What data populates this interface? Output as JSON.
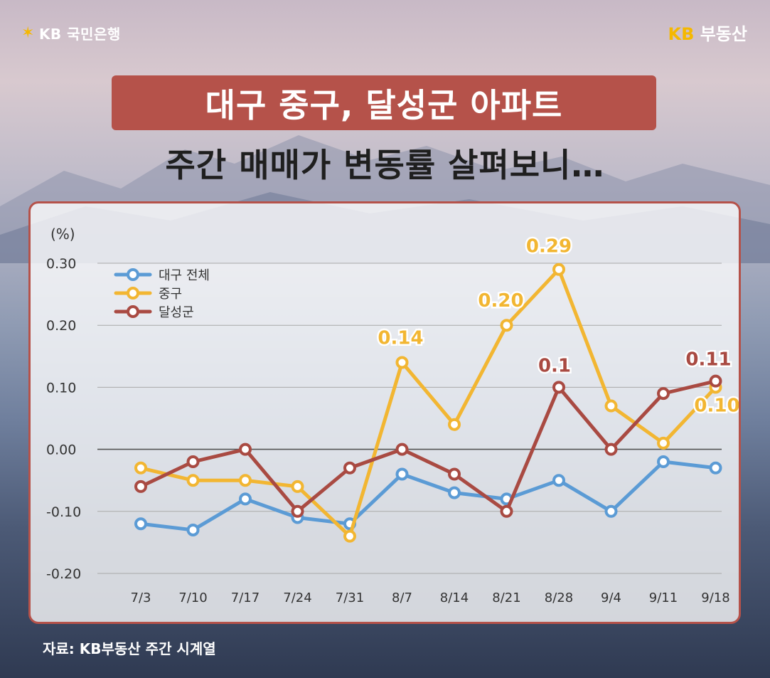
{
  "header": {
    "bank_brand": "KB 국민은행",
    "brand_main": "KB",
    "brand_sub": "부동산",
    "title": "대구 중구, 달성군 아파트",
    "subtitle": "주간 매매가 변동률 살펴보니…"
  },
  "source": "자료: KB부동산 주간 시계열",
  "colors": {
    "accent": "#b5524a",
    "daegu": "#5b9bd5",
    "junggu": "#f2b632",
    "dalseong": "#a94a42",
    "gold": "#f5b800"
  },
  "icons": {
    "bank_logo": "star-icon"
  },
  "chart_data": {
    "type": "line",
    "unit_label": "(%)",
    "categories": [
      "7/3",
      "7/10",
      "7/17",
      "7/24",
      "7/31",
      "8/7",
      "8/14",
      "8/21",
      "8/28",
      "9/4",
      "9/11",
      "9/18"
    ],
    "yticks": [
      "0.30",
      "0.20",
      "0.10",
      "0.00",
      "-0.10",
      "-0.20"
    ],
    "ylim": [
      -0.2,
      0.3
    ],
    "grid": true,
    "legend_position": "top-left",
    "series": [
      {
        "name": "대구 전체",
        "color": "#5b9bd5",
        "values": [
          -0.12,
          -0.13,
          -0.08,
          -0.11,
          -0.12,
          -0.04,
          -0.07,
          -0.08,
          -0.05,
          -0.1,
          -0.02,
          -0.03
        ]
      },
      {
        "name": "중구",
        "color": "#f2b632",
        "values": [
          -0.03,
          -0.05,
          -0.05,
          -0.06,
          -0.14,
          0.14,
          0.04,
          0.2,
          0.29,
          0.07,
          0.01,
          0.1
        ]
      },
      {
        "name": "달성군",
        "color": "#a94a42",
        "values": [
          -0.06,
          -0.02,
          0.0,
          -0.1,
          -0.03,
          0.0,
          -0.04,
          -0.1,
          0.1,
          0.0,
          0.09,
          0.11
        ]
      }
    ],
    "annotations": [
      {
        "series": 1,
        "index": 5,
        "text": "0.14"
      },
      {
        "series": 1,
        "index": 7,
        "text": "0.20"
      },
      {
        "series": 1,
        "index": 8,
        "text": "0.29"
      },
      {
        "series": 2,
        "index": 8,
        "text": "0.1"
      },
      {
        "series": 2,
        "index": 11,
        "text": "0.11"
      },
      {
        "series": 1,
        "index": 11,
        "text": "0.10"
      }
    ]
  }
}
